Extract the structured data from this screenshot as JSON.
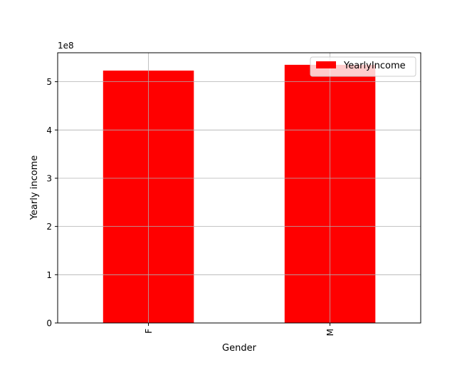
{
  "chart_data": {
    "type": "bar",
    "categories": [
      "F",
      "M"
    ],
    "series": [
      {
        "name": "YearlyIncome",
        "values": [
          523000000,
          535000000
        ],
        "color": "#ff0000"
      }
    ],
    "title": "",
    "xlabel": "Gender",
    "ylabel": "Yearly income",
    "ylim": [
      0,
      560000000
    ],
    "y_ticks": [
      0,
      1,
      2,
      3,
      4,
      5
    ],
    "y_tick_labels": [
      "0",
      "1",
      "2",
      "3",
      "4",
      "5"
    ],
    "y_offset_label": "1e8",
    "y_tick_scale": 100000000,
    "grid": true,
    "legend_position": "upper-right",
    "x_tick_rotation": "vertical"
  }
}
